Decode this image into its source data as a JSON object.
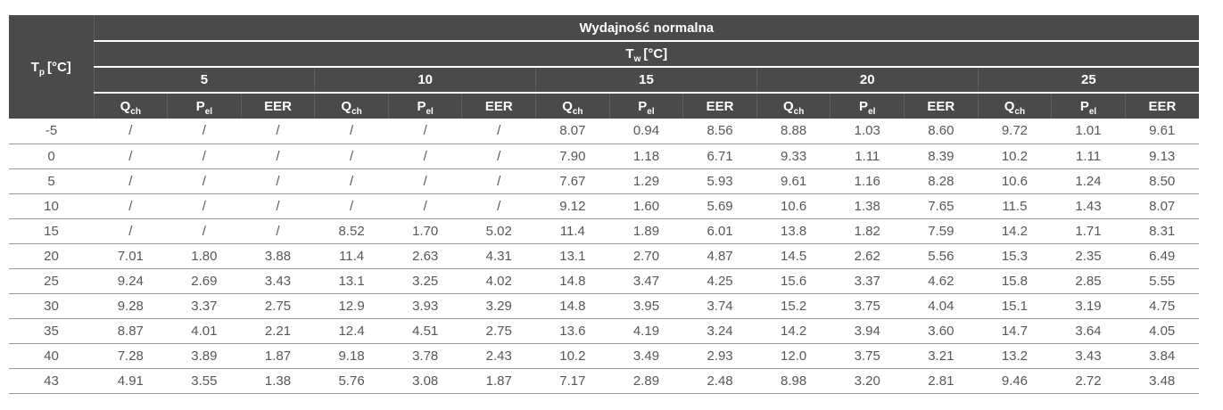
{
  "header": {
    "title": "Wydajność normalna",
    "tp": {
      "main": "T",
      "sub": "p",
      "unit": "[°C]"
    },
    "tw": {
      "main": "T",
      "sub": "w",
      "unit": "[°C]"
    },
    "temps": [
      "5",
      "10",
      "15",
      "20",
      "25"
    ],
    "col_labels": [
      {
        "main": "Q",
        "sub": "ch"
      },
      {
        "main": "P",
        "sub": "el"
      },
      {
        "main": "EER",
        "sub": ""
      }
    ]
  },
  "rows": [
    {
      "tp": "-5",
      "values": [
        "/",
        "/",
        "/",
        "/",
        "/",
        "/",
        "8.07",
        "0.94",
        "8.56",
        "8.88",
        "1.03",
        "8.60",
        "9.72",
        "1.01",
        "9.61"
      ]
    },
    {
      "tp": "0",
      "values": [
        "/",
        "/",
        "/",
        "/",
        "/",
        "/",
        "7.90",
        "1.18",
        "6.71",
        "9.33",
        "1.11",
        "8.39",
        "10.2",
        "1.11",
        "9.13"
      ]
    },
    {
      "tp": "5",
      "values": [
        "/",
        "/",
        "/",
        "/",
        "/",
        "/",
        "7.67",
        "1.29",
        "5.93",
        "9.61",
        "1.16",
        "8.28",
        "10.6",
        "1.24",
        "8.50"
      ]
    },
    {
      "tp": "10",
      "values": [
        "/",
        "/",
        "/",
        "/",
        "/",
        "/",
        "9.12",
        "1.60",
        "5.69",
        "10.6",
        "1.38",
        "7.65",
        "11.5",
        "1.43",
        "8.07"
      ]
    },
    {
      "tp": "15",
      "values": [
        "/",
        "/",
        "/",
        "8.52",
        "1.70",
        "5.02",
        "11.4",
        "1.89",
        "6.01",
        "13.8",
        "1.82",
        "7.59",
        "14.2",
        "1.71",
        "8.31"
      ]
    },
    {
      "tp": "20",
      "values": [
        "7.01",
        "1.80",
        "3.88",
        "11.4",
        "2.63",
        "4.31",
        "13.1",
        "2.70",
        "4.87",
        "14.5",
        "2.62",
        "5.56",
        "15.3",
        "2.35",
        "6.49"
      ]
    },
    {
      "tp": "25",
      "values": [
        "9.24",
        "2.69",
        "3.43",
        "13.1",
        "3.25",
        "4.02",
        "14.8",
        "3.47",
        "4.25",
        "15.6",
        "3.37",
        "4.62",
        "15.8",
        "2.85",
        "5.55"
      ]
    },
    {
      "tp": "30",
      "values": [
        "9.28",
        "3.37",
        "2.75",
        "12.9",
        "3.93",
        "3.29",
        "14.8",
        "3.95",
        "3.74",
        "15.2",
        "3.75",
        "4.04",
        "15.1",
        "3.19",
        "4.75"
      ]
    },
    {
      "tp": "35",
      "values": [
        "8.87",
        "4.01",
        "2.21",
        "12.4",
        "4.51",
        "2.75",
        "13.6",
        "4.19",
        "3.24",
        "14.2",
        "3.94",
        "3.60",
        "14.7",
        "3.64",
        "4.05"
      ]
    },
    {
      "tp": "40",
      "values": [
        "7.28",
        "3.89",
        "1.87",
        "9.18",
        "3.78",
        "2.43",
        "10.2",
        "3.49",
        "2.93",
        "12.0",
        "3.75",
        "3.21",
        "13.2",
        "3.43",
        "3.84"
      ]
    },
    {
      "tp": "43",
      "values": [
        "4.91",
        "3.55",
        "1.38",
        "5.76",
        "3.08",
        "1.87",
        "7.17",
        "2.89",
        "2.48",
        "8.98",
        "3.20",
        "2.81",
        "9.46",
        "2.72",
        "3.48"
      ]
    }
  ]
}
